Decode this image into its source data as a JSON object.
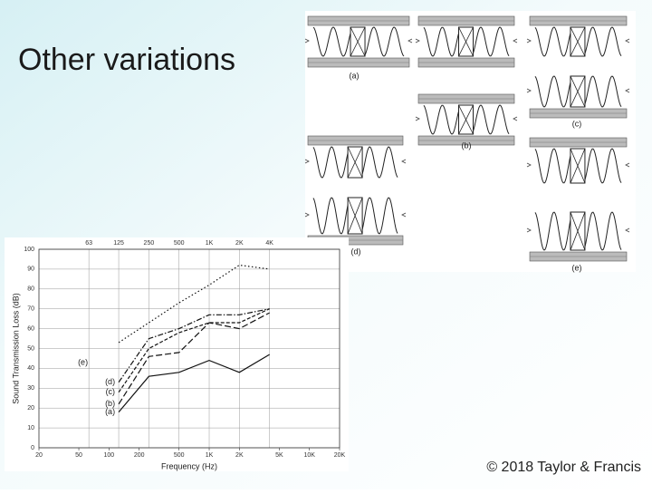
{
  "slide": {
    "title": "Other variations",
    "footer": "© 2018 Taylor & Francis"
  },
  "diagram": {
    "labels": [
      "(a)",
      "(b)",
      "(c)",
      "(d)",
      "(e)"
    ]
  },
  "chart_data": {
    "type": "line",
    "x_label": "Frequency (Hz)",
    "y_label": "Sound Transmission Loss (dB)",
    "x": [
      125,
      250,
      500,
      1000,
      2000,
      4000
    ],
    "xscale": "log",
    "xlim": [
      20,
      20000
    ],
    "xticks": [
      20,
      50,
      100,
      200,
      500,
      {
        "value": 1000,
        "label": "1K"
      },
      {
        "value": 2000,
        "label": "2K"
      },
      {
        "value": 5000,
        "label": "5K"
      },
      {
        "value": 10000,
        "label": "10K"
      },
      {
        "value": 20000,
        "label": "20K"
      }
    ],
    "top_xticks": [
      63,
      125,
      250,
      500,
      {
        "value": 1000,
        "label": "1K"
      },
      {
        "value": 2000,
        "label": "2K"
      },
      {
        "value": 4000,
        "label": "4K"
      }
    ],
    "ylim": [
      0,
      100
    ],
    "yticks": [
      0,
      10,
      20,
      30,
      40,
      50,
      60,
      70,
      80,
      90,
      100
    ],
    "grid": true,
    "series": [
      {
        "name": "(a)",
        "color": "#111111",
        "dash": "solid",
        "values": [
          18,
          36,
          38,
          44,
          38,
          47
        ]
      },
      {
        "name": "(b)",
        "color": "#111111",
        "dash": "dashed",
        "values": [
          22,
          46,
          48,
          63,
          60,
          68
        ]
      },
      {
        "name": "(c)",
        "color": "#111111",
        "dash": "short-dashed",
        "values": [
          28,
          50,
          58,
          63,
          63,
          70
        ]
      },
      {
        "name": "(d)",
        "color": "#111111",
        "dash": "dash-dot",
        "values": [
          33,
          55,
          60,
          67,
          67,
          70
        ]
      },
      {
        "name": "(e)",
        "color": "#111111",
        "dash": "dotted",
        "values": [
          53,
          63,
          73,
          82,
          92,
          90
        ]
      }
    ]
  }
}
